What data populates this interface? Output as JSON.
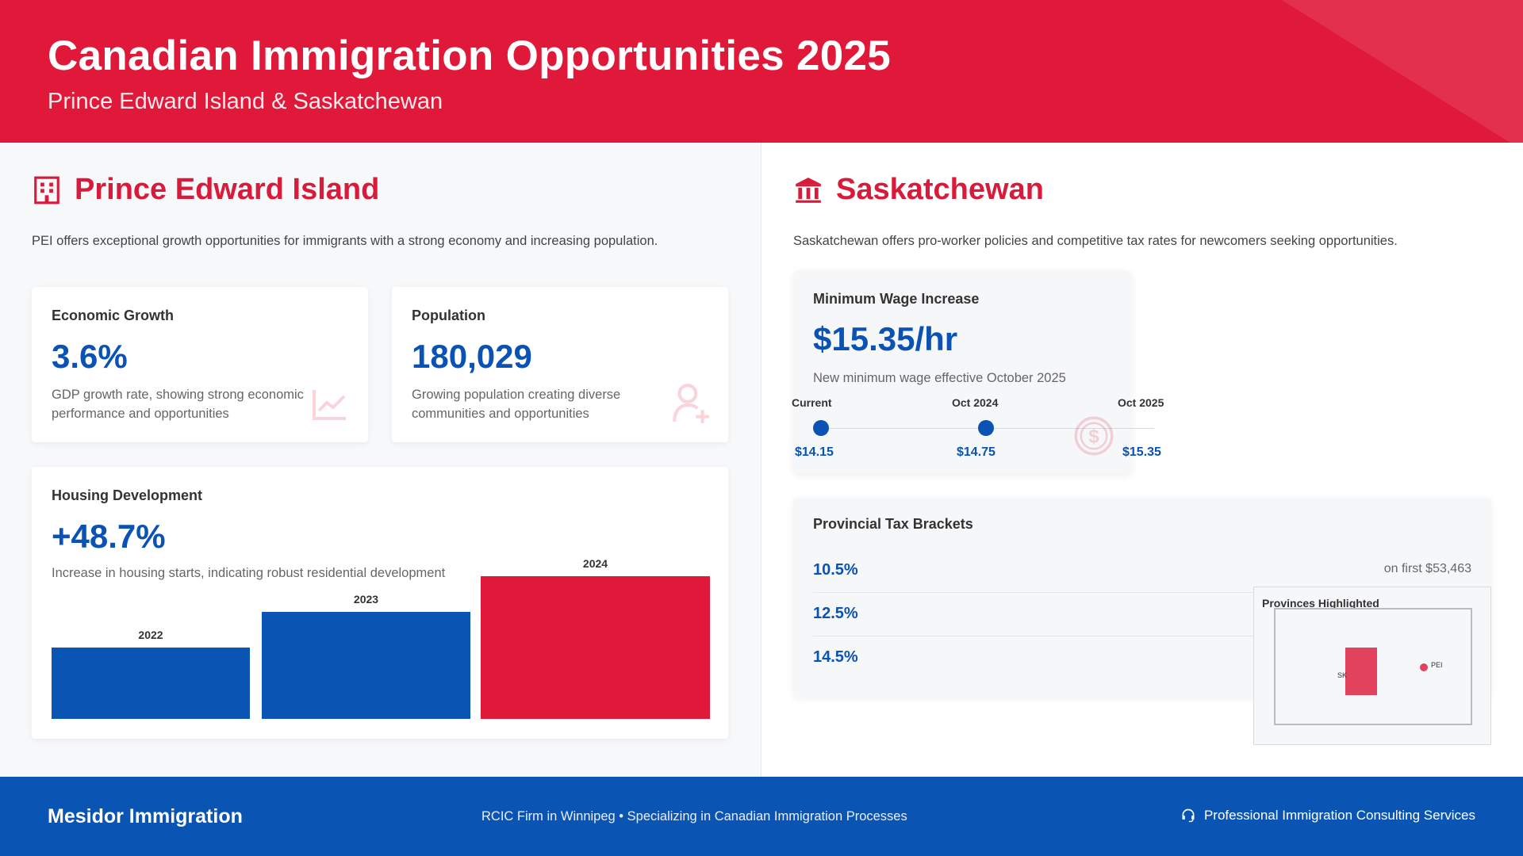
{
  "header": {
    "title": "Canadian Immigration Opportunities 2025",
    "subtitle": "Prince Edward Island & Saskatchewan"
  },
  "pei": {
    "title": "Prince Edward Island",
    "description": "PEI offers exceptional growth opportunities for immigrants with a strong economy and increasing population.",
    "economic_growth": {
      "title": "Economic Growth",
      "value": "3.6%",
      "description": "GDP growth rate, showing strong economic performance and opportunities"
    },
    "population": {
      "title": "Population",
      "value": "180,029",
      "description": "Growing population creating diverse communities and opportunities"
    },
    "housing": {
      "title": "Housing Development",
      "value": "+48.7%",
      "description": "Increase in housing starts, indicating robust residential development"
    }
  },
  "chart_data": {
    "type": "bar",
    "title": "Housing Development",
    "categories": [
      "2022",
      "2023",
      "2024"
    ],
    "values": [
      1.0,
      1.5,
      2.0
    ],
    "colors": [
      "#0a55b4",
      "#0a55b4",
      "#e0193a"
    ],
    "ylim": [
      0,
      2.0
    ],
    "xlabel": "",
    "ylabel": ""
  },
  "sk": {
    "title": "Saskatchewan",
    "description": "Saskatchewan offers pro-worker policies and competitive tax rates for newcomers seeking opportunities.",
    "wage": {
      "title": "Minimum Wage Increase",
      "value": "$15.35/hr",
      "description": "New minimum wage effective October 2025",
      "timeline": [
        {
          "label": "Current",
          "value": "$14.15"
        },
        {
          "label": "Oct 2024",
          "value": "$14.75"
        },
        {
          "label": "Oct 2025",
          "value": "$15.35"
        }
      ]
    },
    "tax": {
      "title": "Provincial Tax Brackets",
      "rows": [
        {
          "rate": "10.5%",
          "note": "on first $53,463"
        },
        {
          "rate": "12.5%",
          "note": ""
        },
        {
          "rate": "14.5%",
          "note": ""
        }
      ]
    }
  },
  "map": {
    "title": "Provinces Highlighted",
    "sk_label": "SK",
    "pei_label": "PEI"
  },
  "footer": {
    "brand": "Mesidor Immigration",
    "tagline": "RCIC Firm in Winnipeg • Specializing in Canadian Immigration Processes",
    "services": "Professional Immigration Consulting Services"
  },
  "colors": {
    "red": "#e0193a",
    "blue": "#0a55b4"
  }
}
